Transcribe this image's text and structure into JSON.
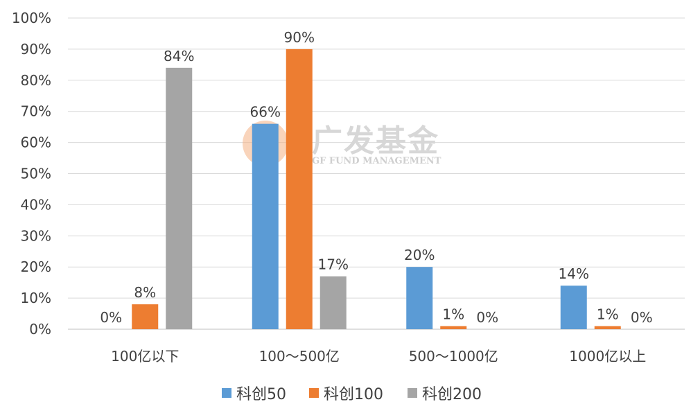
{
  "watermark": {
    "name_cn": "广发基金",
    "name_en": "GF FUND MANAGEMENT",
    "logo_color": "#f4b183"
  },
  "chart_data": {
    "type": "bar",
    "categories": [
      "100亿以下",
      "100～500亿",
      "500～1000亿",
      "1000亿以上"
    ],
    "series": [
      {
        "name": "科创50",
        "color": "#5b9bd5",
        "values": [
          0,
          66,
          20,
          14
        ],
        "labels": [
          "0%",
          "66%",
          "20%",
          "14%"
        ]
      },
      {
        "name": "科创100",
        "color": "#ed7d31",
        "values": [
          8,
          90,
          1,
          1
        ],
        "labels": [
          "8%",
          "90%",
          "1%",
          "1%"
        ]
      },
      {
        "name": "科创200",
        "color": "#a5a5a5",
        "values": [
          84,
          17,
          0,
          0
        ],
        "labels": [
          "84%",
          "17%",
          "0%",
          "0%"
        ]
      }
    ],
    "ylim": [
      0,
      100
    ],
    "yticks": [
      "0%",
      "10%",
      "20%",
      "30%",
      "40%",
      "50%",
      "60%",
      "70%",
      "80%",
      "90%",
      "100%"
    ],
    "title": "",
    "xlabel": "",
    "ylabel": "",
    "grid": true,
    "legend": "bottom"
  }
}
